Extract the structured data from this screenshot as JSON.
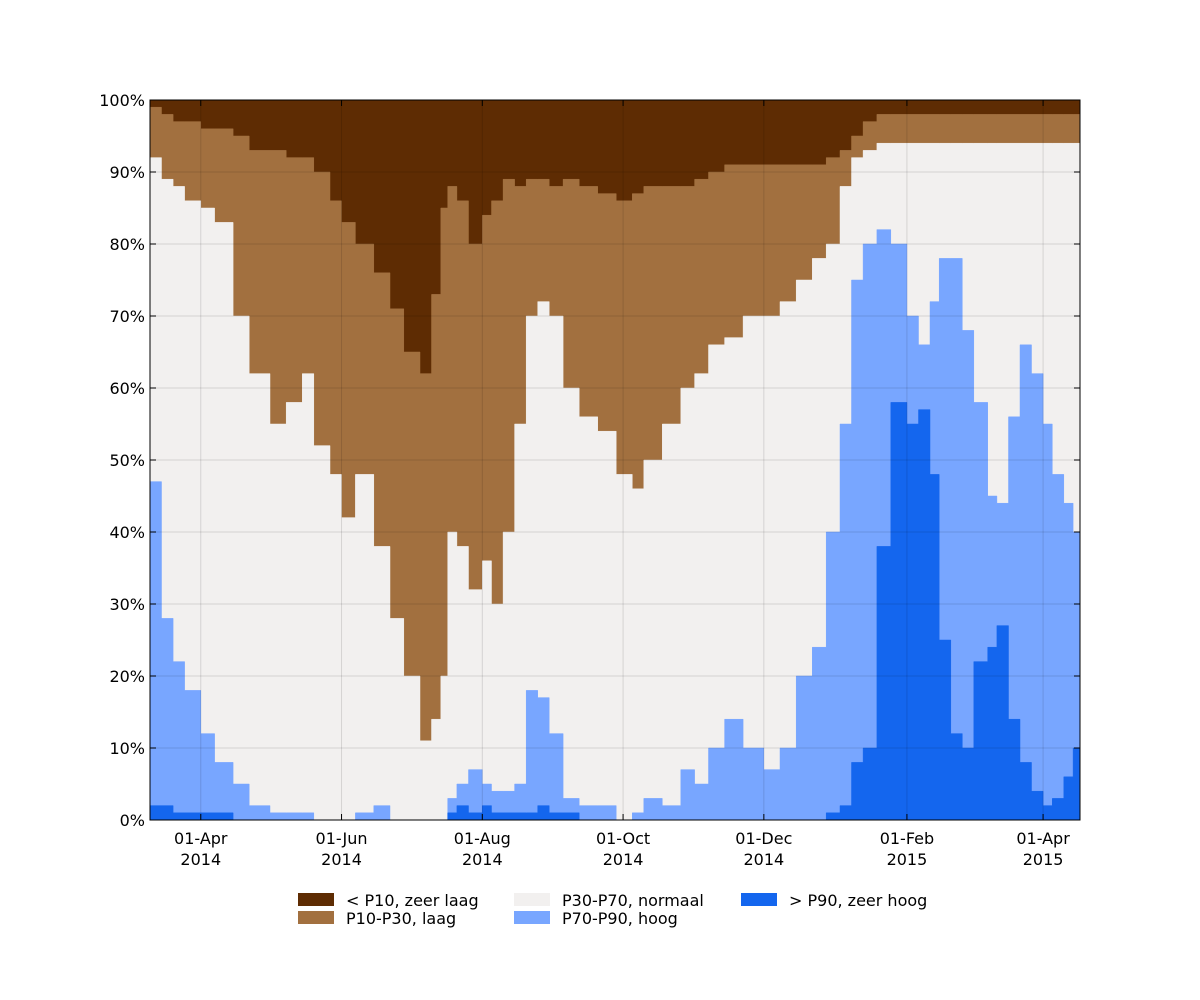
{
  "chart_data": {
    "type": "area",
    "stacked": true,
    "title": "",
    "xlabel": "",
    "ylabel": "",
    "ylim": [
      0,
      100
    ],
    "xlim": [
      "2014-03-10",
      "2015-04-17"
    ],
    "grid": true,
    "legend_position": "bottom",
    "y_ticks": [
      {
        "value": 0,
        "label": "0%"
      },
      {
        "value": 10,
        "label": "10%"
      },
      {
        "value": 20,
        "label": "20%"
      },
      {
        "value": 30,
        "label": "30%"
      },
      {
        "value": 40,
        "label": "40%"
      },
      {
        "value": 50,
        "label": "50%"
      },
      {
        "value": 60,
        "label": "60%"
      },
      {
        "value": 70,
        "label": "70%"
      },
      {
        "value": 80,
        "label": "80%"
      },
      {
        "value": 90,
        "label": "90%"
      },
      {
        "value": 100,
        "label": "100%"
      }
    ],
    "x_ticks": [
      {
        "date": "2014-04-01",
        "label1": "01-Apr",
        "label2": "2014"
      },
      {
        "date": "2014-06-01",
        "label1": "01-Jun",
        "label2": "2014"
      },
      {
        "date": "2014-08-01",
        "label1": "01-Aug",
        "label2": "2014"
      },
      {
        "date": "2014-10-01",
        "label1": "01-Oct",
        "label2": "2014"
      },
      {
        "date": "2014-12-01",
        "label1": "01-Dec",
        "label2": "2014"
      },
      {
        "date": "2015-02-01",
        "label1": "01-Feb",
        "label2": "2015"
      },
      {
        "date": "2015-04-01",
        "label1": "01-Apr",
        "label2": "2015"
      }
    ],
    "legend": [
      {
        "label": "< P10, zeer laag",
        "color": "#5e2c03"
      },
      {
        "label": "P10-P30, laag",
        "color": "#a2703f"
      },
      {
        "label": "P30-P70, normaal",
        "color": "#f2f0ef"
      },
      {
        "label": "P70-P90, hoog",
        "color": "#78a6ff"
      },
      {
        "label": "> P90, zeer hoog",
        "color": "#1466ee"
      }
    ],
    "series_note_order": "cumulative boundaries from bottom: zeer_hoog top, hoog top, normaal top, laag top",
    "boundaries": {
      "dates": [
        "2014-03-10",
        "2014-03-15",
        "2014-03-20",
        "2014-03-25",
        "2014-04-01",
        "2014-04-07",
        "2014-04-15",
        "2014-04-22",
        "2014-05-01",
        "2014-05-08",
        "2014-05-15",
        "2014-05-20",
        "2014-05-27",
        "2014-06-01",
        "2014-06-07",
        "2014-06-15",
        "2014-06-22",
        "2014-06-28",
        "2014-07-05",
        "2014-07-10",
        "2014-07-14",
        "2014-07-17",
        "2014-07-21",
        "2014-07-26",
        "2014-08-01",
        "2014-08-05",
        "2014-08-10",
        "2014-08-15",
        "2014-08-20",
        "2014-08-25",
        "2014-08-30",
        "2014-09-05",
        "2014-09-12",
        "2014-09-20",
        "2014-09-28",
        "2014-10-05",
        "2014-10-10",
        "2014-10-18",
        "2014-10-26",
        "2014-11-01",
        "2014-11-07",
        "2014-11-14",
        "2014-11-22",
        "2014-12-01",
        "2014-12-08",
        "2014-12-15",
        "2014-12-22",
        "2014-12-28",
        "2015-01-03",
        "2015-01-08",
        "2015-01-13",
        "2015-01-19",
        "2015-01-25",
        "2015-02-01",
        "2015-02-06",
        "2015-02-11",
        "2015-02-15",
        "2015-02-20",
        "2015-02-25",
        "2015-03-02",
        "2015-03-08",
        "2015-03-12",
        "2015-03-17",
        "2015-03-22",
        "2015-03-27",
        "2015-04-01",
        "2015-04-05",
        "2015-04-10",
        "2015-04-14",
        "2015-04-17"
      ],
      "zeer_hoog_top": [
        2,
        2,
        1,
        1,
        1,
        1,
        0,
        0,
        0,
        0,
        0,
        0,
        0,
        0,
        0,
        0,
        0,
        0,
        0,
        0,
        0,
        1,
        2,
        1,
        2,
        1,
        1,
        1,
        1,
        2,
        1,
        1,
        0,
        0,
        0,
        0,
        0,
        0,
        0,
        0,
        0,
        0,
        0,
        0,
        0,
        0,
        0,
        1,
        2,
        8,
        10,
        38,
        58,
        55,
        57,
        48,
        25,
        12,
        10,
        22,
        24,
        27,
        14,
        8,
        4,
        2,
        3,
        6,
        10,
        5
      ],
      "hoog_top": [
        47,
        28,
        22,
        18,
        12,
        8,
        5,
        2,
        1,
        1,
        1,
        0,
        0,
        0,
        1,
        2,
        0,
        0,
        0,
        0,
        0,
        3,
        5,
        7,
        5,
        4,
        4,
        5,
        18,
        17,
        12,
        3,
        2,
        2,
        0,
        1,
        3,
        2,
        7,
        5,
        10,
        14,
        10,
        7,
        10,
        20,
        24,
        40,
        55,
        75,
        80,
        82,
        80,
        70,
        66,
        72,
        78,
        78,
        68,
        58,
        45,
        44,
        56,
        66,
        62,
        55,
        48,
        44,
        40,
        54
      ],
      "normaal_top": [
        92,
        89,
        88,
        86,
        85,
        83,
        70,
        62,
        55,
        58,
        62,
        52,
        48,
        42,
        48,
        38,
        28,
        20,
        11,
        14,
        20,
        40,
        38,
        32,
        36,
        30,
        40,
        55,
        70,
        72,
        70,
        60,
        56,
        54,
        48,
        46,
        50,
        55,
        60,
        62,
        66,
        67,
        70,
        70,
        72,
        75,
        78,
        80,
        88,
        92,
        93,
        94,
        94,
        94,
        94,
        94,
        94,
        94,
        94,
        94,
        94,
        94,
        94,
        94,
        94,
        94,
        94,
        94,
        94,
        93
      ],
      "laag_top": [
        99,
        98,
        97,
        97,
        96,
        96,
        95,
        93,
        93,
        92,
        92,
        90,
        86,
        83,
        80,
        76,
        71,
        65,
        62,
        73,
        85,
        88,
        86,
        80,
        84,
        86,
        89,
        88,
        89,
        89,
        88,
        89,
        88,
        87,
        86,
        87,
        88,
        88,
        88,
        89,
        90,
        91,
        91,
        91,
        91,
        91,
        91,
        92,
        93,
        95,
        97,
        98,
        98,
        98,
        98,
        98,
        98,
        98,
        98,
        98,
        98,
        98,
        98,
        98,
        98,
        98,
        98,
        98,
        98,
        98
      ]
    }
  }
}
